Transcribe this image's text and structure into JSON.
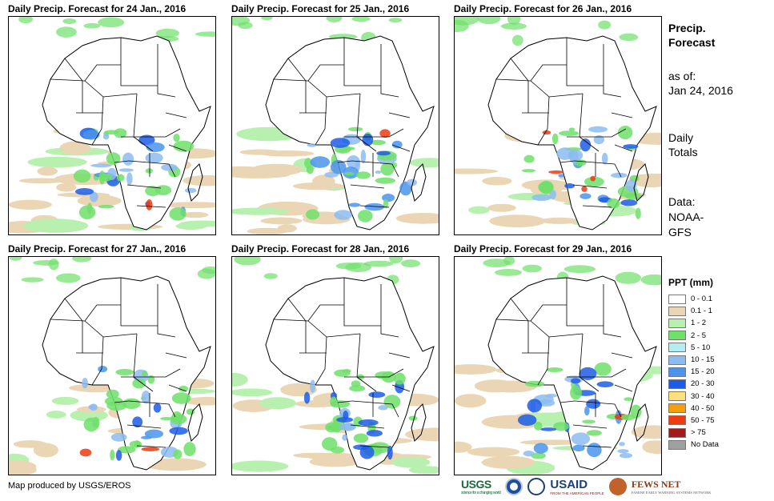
{
  "panels": [
    {
      "title": "Daily Precip. Forecast for 24 Jan., 2016"
    },
    {
      "title": "Daily Precip. Forecast for 25 Jan., 2016"
    },
    {
      "title": "Daily Precip. Forecast for 26 Jan., 2016"
    },
    {
      "title": "Daily Precip. Forecast for 27 Jan., 2016"
    },
    {
      "title": "Daily Precip. Forecast for 28 Jan., 2016"
    },
    {
      "title": "Daily Precip. Forecast for 29 Jan., 2016"
    }
  ],
  "sidebar": {
    "heading_line1": "Precip.",
    "heading_line2": "Forecast",
    "asof_label": "as of:",
    "asof_date": "Jan 24, 2016",
    "totals_line1": "Daily",
    "totals_line2": "Totals",
    "data_line1": "Data:",
    "data_line2": "NOAA-",
    "data_line3": "GFS"
  },
  "legend": {
    "title": "PPT (mm)",
    "items": [
      {
        "label": "0 - 0.1",
        "color": "#ffffff"
      },
      {
        "label": "0.1 - 1",
        "color": "#ead6b4"
      },
      {
        "label": "1 - 2",
        "color": "#b8f0b0"
      },
      {
        "label": "2 - 5",
        "color": "#6fe06a"
      },
      {
        "label": "5 - 10",
        "color": "#b4ecf4"
      },
      {
        "label": "10 - 15",
        "color": "#8dbcf0"
      },
      {
        "label": "15 - 20",
        "color": "#4a94ec"
      },
      {
        "label": "20 - 30",
        "color": "#1e5ce6"
      },
      {
        "label": "30 - 40",
        "color": "#fbe07c"
      },
      {
        "label": "40 - 50",
        "color": "#f3a010"
      },
      {
        "label": "50 - 75",
        "color": "#f03a10"
      },
      {
        "label": "> 75",
        "color": "#a11b1b"
      },
      {
        "label": "No Data",
        "color": "#a0a0a0"
      }
    ]
  },
  "footer": {
    "credit": "Map produced by USGS/EROS",
    "logos": {
      "usgs": "USGS",
      "usgs_tagline": "science for a changing world",
      "usaid": "USAID",
      "usaid_tagline": "FROM THE AMERICAN PEOPLE",
      "fews": "FEWS NET",
      "fews_tagline": "FAMINE EARLY WARNING SYSTEMS NETWORK"
    }
  }
}
